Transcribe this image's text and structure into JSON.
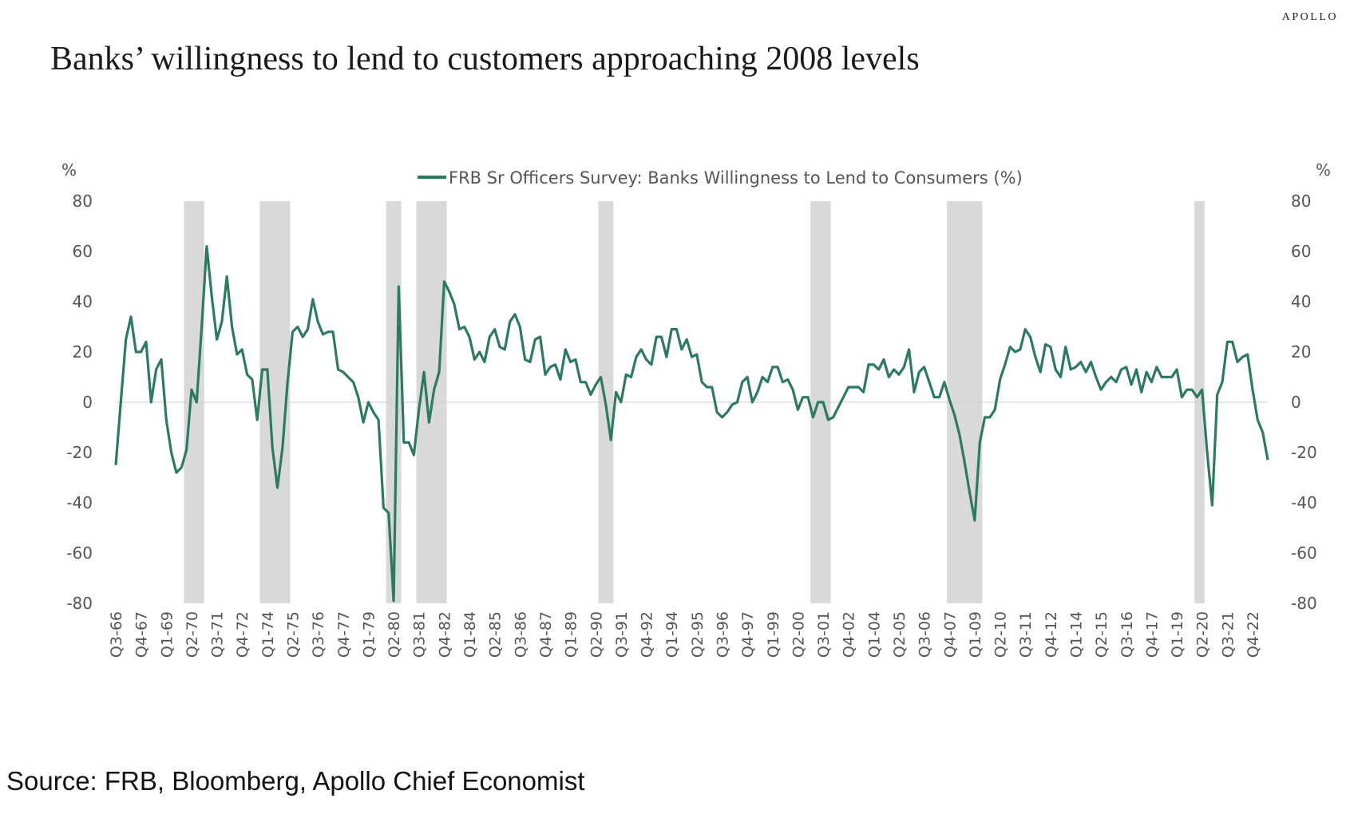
{
  "brand": "APOLLO",
  "title": "Banks’ willingness to lend to customers approaching 2008 levels",
  "source": "Source: FRB, Bloomberg, Apollo Chief Economist",
  "chart_data": {
    "type": "line",
    "title": "Banks’ willingness to lend to customers approaching 2008 levels",
    "left_unit": "%",
    "right_unit": "%",
    "ylim": [
      -80,
      80
    ],
    "y_ticks": [
      80,
      60,
      40,
      20,
      0,
      -20,
      -40,
      -60,
      -80
    ],
    "line_color": "#2e7a5f",
    "recession_color": "#d9d9d9",
    "grid": false,
    "legend_position": "top-center",
    "series": [
      {
        "name": "FRB Sr Officers Survey: Banks Willingness to Lend to Consumers (%)",
        "start": "Q3-66",
        "frequency": "quarterly",
        "values": [
          -25,
          0,
          25,
          34,
          20,
          20,
          24,
          0,
          13,
          17,
          -7,
          -20,
          -28,
          -26,
          -19,
          5,
          0,
          30,
          62,
          42,
          25,
          32,
          50,
          30,
          19,
          21,
          11,
          9,
          -7,
          13,
          13,
          -18,
          -34,
          -18,
          8,
          28,
          30,
          26,
          29,
          41,
          32,
          27,
          28,
          28,
          13,
          12,
          10,
          8,
          2,
          -8,
          0,
          -4,
          -7,
          -42,
          -44,
          -79,
          46,
          -16,
          -16,
          -21,
          -3,
          12,
          -8,
          5,
          12,
          48,
          44,
          39,
          29,
          30,
          26,
          17,
          20,
          16,
          26,
          29,
          22,
          21,
          32,
          35,
          30,
          17,
          16,
          25,
          26,
          11,
          14,
          15,
          9,
          21,
          16,
          17,
          8,
          8,
          3,
          7,
          10,
          -1,
          -15,
          4,
          0,
          11,
          10,
          18,
          21,
          17,
          15,
          26,
          26,
          18,
          29,
          29,
          21,
          25,
          18,
          19,
          8,
          6,
          6,
          -4,
          -6,
          -4,
          -1,
          0,
          8,
          10,
          0,
          4,
          10,
          8,
          14,
          14,
          8,
          9,
          5,
          -3,
          2,
          2,
          -6,
          0,
          0,
          -7,
          -6,
          -2,
          2,
          6,
          6,
          6,
          4,
          15,
          15,
          13,
          17,
          10,
          13,
          11,
          14,
          21,
          4,
          12,
          14,
          8,
          2,
          2,
          8,
          1,
          -5,
          -13,
          -24,
          -36,
          -47,
          -16,
          -6,
          -6,
          -3,
          9,
          15,
          22,
          20,
          21,
          29,
          26,
          18,
          12,
          23,
          22,
          13,
          10,
          22,
          13,
          14,
          16,
          12,
          16,
          10,
          5,
          8,
          10,
          8,
          13,
          14,
          7,
          13,
          4,
          12,
          8,
          14,
          10,
          10,
          10,
          13,
          2,
          5,
          5,
          2,
          5,
          -20,
          -41,
          3,
          8,
          24,
          24,
          16,
          18,
          19,
          5,
          -7,
          -12,
          -23
        ]
      }
    ],
    "recessions": [
      [
        "Q1-70",
        "Q4-70"
      ],
      [
        "Q4-73",
        "Q1-75"
      ],
      [
        "Q1-80",
        "Q3-80"
      ],
      [
        "Q3-81",
        "Q4-82"
      ],
      [
        "Q3-90",
        "Q1-91"
      ],
      [
        "Q1-01",
        "Q4-01"
      ],
      [
        "Q4-07",
        "Q2-09"
      ],
      [
        "Q1-20",
        "Q2-20"
      ]
    ],
    "x_tick_labels": [
      "Q3-66",
      "Q4-67",
      "Q1-69",
      "Q2-70",
      "Q3-71",
      "Q4-72",
      "Q1-74",
      "Q2-75",
      "Q3-76",
      "Q4-77",
      "Q1-79",
      "Q2-80",
      "Q3-81",
      "Q4-82",
      "Q1-84",
      "Q2-85",
      "Q3-86",
      "Q4-87",
      "Q1-89",
      "Q2-90",
      "Q3-91",
      "Q4-92",
      "Q1-94",
      "Q2-95",
      "Q3-96",
      "Q4-97",
      "Q1-99",
      "Q2-00",
      "Q3-01",
      "Q4-02",
      "Q1-04",
      "Q2-05",
      "Q3-06",
      "Q4-07",
      "Q1-09",
      "Q2-10",
      "Q3-11",
      "Q4-12",
      "Q1-14",
      "Q2-15",
      "Q3-16",
      "Q4-17",
      "Q1-19",
      "Q2-20",
      "Q3-21",
      "Q4-22"
    ]
  }
}
